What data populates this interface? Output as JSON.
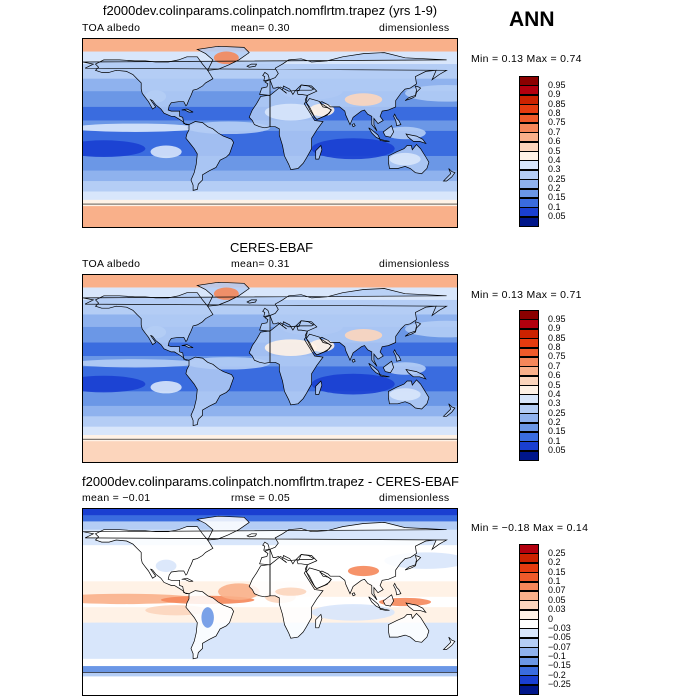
{
  "header": {
    "season": "ANN"
  },
  "panels": [
    {
      "title": "f2000dev.colinparams.colinpatch.nomflrtm.trapez (yrs 1-9)",
      "left_text": "TOA albedo",
      "mid_text": "mean=   0.30",
      "right_text": "dimensionless",
      "minmax_text": "Min =   0.13 Max =   0.74",
      "levels": [
        "0.95",
        "0.9",
        "0.85",
        "0.8",
        "0.75",
        "0.7",
        "0.6",
        "0.5",
        "0.4",
        "0.3",
        "0.25",
        "0.2",
        "0.15",
        "0.1",
        "0.05"
      ],
      "colors": [
        "#8b0000",
        "#b3000e",
        "#cc2200",
        "#e63b0f",
        "#ef5a2a",
        "#f5875a",
        "#f9b08a",
        "#fcd5bc",
        "#fff2e6",
        "#d8e6fb",
        "#b4cdf5",
        "#8fb2ee",
        "#6b97e6",
        "#3a6cdf",
        "#1a3fd1",
        "#00168a"
      ],
      "field": "model"
    },
    {
      "title": "CERES-EBAF",
      "left_text": "TOA albedo",
      "mid_text": "mean=   0.31",
      "right_text": "dimensionless",
      "minmax_text": "Min =   0.13 Max =   0.71",
      "levels": [
        "0.95",
        "0.9",
        "0.85",
        "0.8",
        "0.75",
        "0.7",
        "0.6",
        "0.5",
        "0.4",
        "0.3",
        "0.25",
        "0.2",
        "0.15",
        "0.1",
        "0.05"
      ],
      "colors": [
        "#8b0000",
        "#b3000e",
        "#cc2200",
        "#e63b0f",
        "#ef5a2a",
        "#f5875a",
        "#f9b08a",
        "#fcd5bc",
        "#fff2e6",
        "#d8e6fb",
        "#b4cdf5",
        "#8fb2ee",
        "#6b97e6",
        "#3a6cdf",
        "#1a3fd1",
        "#00168a"
      ],
      "field": "obs"
    },
    {
      "title": "f2000dev.colinparams.colinpatch.nomflrtm.trapez - CERES-EBAF",
      "left_text": "mean =  −0.01",
      "mid_text": "rmse =   0.05",
      "right_text": "dimensionless",
      "minmax_text": "Min =  −0.18 Max =   0.14",
      "levels": [
        "0.25",
        "0.2",
        "0.15",
        "0.1",
        "0.07",
        "0.05",
        "0.03",
        "0",
        "−0.03",
        "−0.05",
        "−0.07",
        "−0.1",
        "−0.15",
        "−0.2",
        "−0.25"
      ],
      "colors": [
        "#b3000e",
        "#cc2200",
        "#e63b0f",
        "#ef5a2a",
        "#f5875a",
        "#f9b08a",
        "#fcd5bc",
        "#fff2e6",
        "#ffffff",
        "#d8e6fb",
        "#b4cdf5",
        "#8fb2ee",
        "#6b97e6",
        "#3a6cdf",
        "#1a3fd1",
        "#00168a"
      ],
      "field": "diff"
    }
  ]
}
